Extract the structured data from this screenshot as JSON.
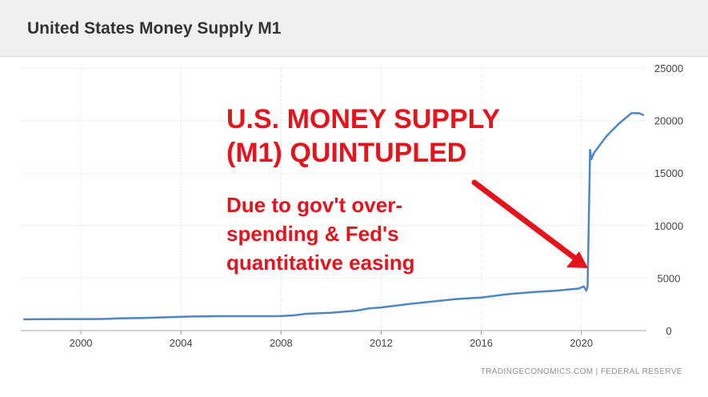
{
  "page": {
    "title": "United States Money Supply M1",
    "annotation_title": "U.S. MONEY SUPPLY (M1) QUINTUPLED",
    "annotation_text": "Due to gov't over-spending & Fed's quantitative easing",
    "source": "TRADINGECONOMICS.COM | FEDERAL RESERVE"
  },
  "colors": {
    "line": "#4f86c6",
    "annotation": "#e2141c",
    "grid": "#cfcfcf",
    "header_bg": "#f0f0f0"
  },
  "chart_data": {
    "type": "line",
    "title": "United States Money Supply M1",
    "xlabel": "",
    "ylabel": "",
    "xlim": [
      1997.6,
      2022.6
    ],
    "ylim": [
      0,
      25000
    ],
    "x_ticks": [
      2000,
      2004,
      2008,
      2012,
      2016,
      2020
    ],
    "x_tick_labels": [
      "2000",
      "2004",
      "2008",
      "2012",
      "2016",
      "2020"
    ],
    "y_ticks": [
      0,
      5000,
      10000,
      15000,
      20000,
      25000
    ],
    "y_tick_labels": [
      "0",
      "5000",
      "10000",
      "15000",
      "20000",
      "25000"
    ],
    "grid": true,
    "legend": "none",
    "series": [
      {
        "values": [
          [
            1997.7,
            1070
          ],
          [
            1998.5,
            1080
          ],
          [
            1999.5,
            1100
          ],
          [
            2000.5,
            1100
          ],
          [
            2001.0,
            1110
          ],
          [
            2001.5,
            1160
          ],
          [
            2002.5,
            1200
          ],
          [
            2003.5,
            1270
          ],
          [
            2004.5,
            1340
          ],
          [
            2005.5,
            1370
          ],
          [
            2006.5,
            1370
          ],
          [
            2007.5,
            1370
          ],
          [
            2008.0,
            1380
          ],
          [
            2008.5,
            1450
          ],
          [
            2009.0,
            1600
          ],
          [
            2010.0,
            1700
          ],
          [
            2011.0,
            1900
          ],
          [
            2011.5,
            2100
          ],
          [
            2012.0,
            2200
          ],
          [
            2013.0,
            2500
          ],
          [
            2014.0,
            2750
          ],
          [
            2015.0,
            3000
          ],
          [
            2016.0,
            3150
          ],
          [
            2017.0,
            3450
          ],
          [
            2018.0,
            3650
          ],
          [
            2019.0,
            3800
          ],
          [
            2019.9,
            4000
          ],
          [
            2020.1,
            4200
          ],
          [
            2020.2,
            3800
          ],
          [
            2020.25,
            4200
          ],
          [
            2020.35,
            17200
          ],
          [
            2020.4,
            16300
          ],
          [
            2020.5,
            16900
          ],
          [
            2021.0,
            18500
          ],
          [
            2021.5,
            19700
          ],
          [
            2022.0,
            20700
          ],
          [
            2022.3,
            20700
          ],
          [
            2022.5,
            20500
          ]
        ]
      }
    ]
  }
}
